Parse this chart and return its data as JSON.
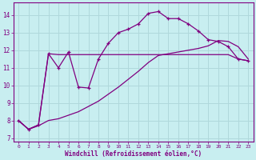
{
  "bg_color": "#c8eef0",
  "grid_color": "#b0d8dc",
  "line_color": "#800080",
  "xlabel": "Windchill (Refroidissement éolien,°C)",
  "xlim": [
    -0.5,
    23.5
  ],
  "ylim": [
    6.8,
    14.7
  ],
  "yticks": [
    7,
    8,
    9,
    10,
    11,
    12,
    13,
    14
  ],
  "xticks": [
    0,
    1,
    2,
    3,
    4,
    5,
    6,
    7,
    8,
    9,
    10,
    11,
    12,
    13,
    14,
    15,
    16,
    17,
    18,
    19,
    20,
    21,
    22,
    23
  ],
  "line1_x": [
    0,
    1,
    2,
    3,
    4,
    5,
    6,
    7,
    8,
    9,
    10,
    11,
    12,
    13,
    14,
    15,
    16,
    17,
    18,
    19,
    20,
    21,
    22,
    23
  ],
  "line1_y": [
    8.0,
    7.5,
    7.7,
    8.0,
    8.1,
    8.3,
    8.5,
    8.8,
    9.1,
    9.5,
    9.9,
    10.35,
    10.8,
    11.3,
    11.7,
    11.8,
    11.9,
    12.0,
    12.1,
    12.25,
    12.55,
    12.5,
    12.2,
    11.5
  ],
  "line2_x": [
    0,
    1,
    2,
    3,
    4,
    5,
    6,
    7,
    8,
    9,
    10,
    11,
    12,
    13,
    14,
    15,
    16,
    17,
    18,
    19,
    20,
    21,
    22,
    23
  ],
  "line2_y": [
    8.0,
    7.5,
    7.75,
    11.8,
    11.0,
    11.9,
    9.9,
    9.85,
    11.5,
    12.4,
    13.0,
    13.2,
    13.5,
    14.1,
    14.2,
    13.8,
    13.8,
    13.5,
    13.1,
    12.6,
    12.5,
    12.2,
    11.5,
    11.4
  ],
  "line3_x": [
    0,
    1,
    2,
    3,
    4,
    5,
    6,
    7,
    8,
    9,
    10,
    11,
    12,
    13,
    14,
    15,
    16,
    17,
    18,
    19,
    20,
    21,
    22,
    23
  ],
  "line3_y": [
    8.0,
    7.5,
    7.75,
    11.8,
    11.75,
    11.75,
    11.75,
    11.75,
    11.75,
    11.75,
    11.75,
    11.75,
    11.75,
    11.75,
    11.75,
    11.75,
    11.75,
    11.75,
    11.75,
    11.75,
    11.75,
    11.75,
    11.5,
    11.4
  ]
}
